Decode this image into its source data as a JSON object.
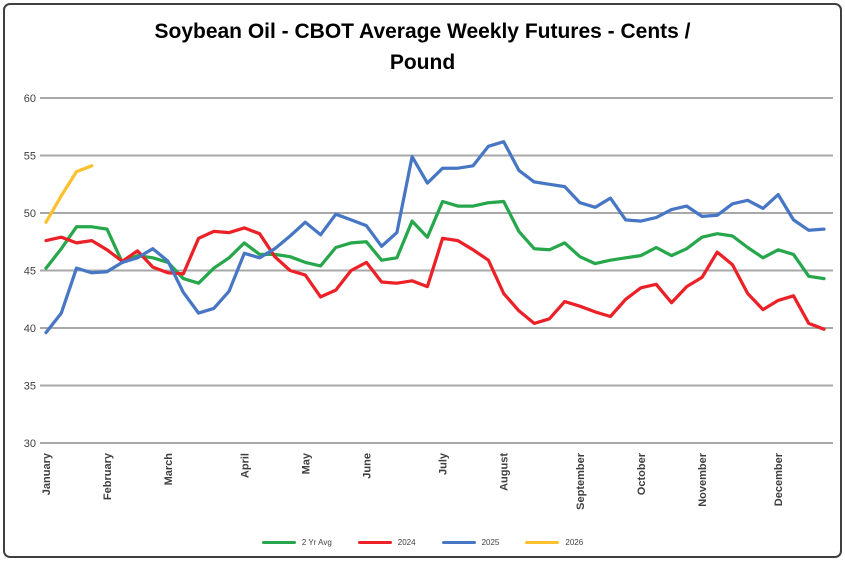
{
  "chart_data": {
    "type": "line",
    "title": "Soybean Oil - CBOT Average Weekly Futures - Cents / Pound",
    "title_lines": [
      "Soybean Oil - CBOT Average Weekly Futures - Cents /",
      "Pound"
    ],
    "ylabel": "",
    "xlabel": "",
    "y_axis": {
      "min": 30,
      "max": 60,
      "step": 5,
      "ticks": [
        60,
        55,
        50,
        45,
        40,
        35,
        30
      ]
    },
    "x_axis": {
      "unit": "weeks",
      "weeks_total": 52,
      "month_labels": [
        "January",
        "February",
        "March",
        "April",
        "May",
        "June",
        "July",
        "August",
        "September",
        "October",
        "November",
        "December"
      ],
      "month_week_index": [
        0,
        4,
        8,
        13,
        17,
        21,
        26,
        30,
        35,
        39,
        43,
        48
      ]
    },
    "grid": true,
    "legend_position": "bottom",
    "series": [
      {
        "name": "2 Yr Avg",
        "color": "#27A74B",
        "values": [
          45.2,
          46.9,
          48.8,
          48.8,
          48.6,
          45.7,
          46.3,
          46.1,
          45.7,
          44.3,
          43.9,
          45.2,
          46.1,
          47.4,
          46.4,
          46.4,
          46.2,
          45.7,
          45.4,
          47.0,
          47.4,
          47.5,
          45.9,
          46.1,
          49.3,
          47.9,
          51.0,
          50.6,
          50.6,
          50.9,
          51.0,
          48.4,
          46.9,
          46.8,
          47.4,
          46.2,
          45.6,
          45.9,
          46.1,
          46.3,
          47.0,
          46.3,
          46.9,
          47.9,
          48.2,
          48.0,
          47.0,
          46.1,
          46.8,
          46.4,
          44.5,
          44.3
        ]
      },
      {
        "name": "2024",
        "color": "#EC2127",
        "values": [
          47.6,
          47.9,
          47.4,
          47.6,
          46.8,
          45.8,
          46.7,
          45.3,
          44.8,
          44.7,
          47.8,
          48.4,
          48.3,
          48.7,
          48.2,
          46.2,
          45.0,
          44.6,
          42.7,
          43.3,
          45.0,
          45.7,
          44.0,
          43.9,
          44.1,
          43.6,
          47.8,
          47.6,
          46.8,
          45.9,
          43.0,
          41.5,
          40.4,
          40.8,
          42.3,
          41.9,
          41.4,
          41.0,
          42.5,
          43.5,
          43.8,
          42.2,
          43.6,
          44.4,
          46.6,
          45.5,
          43.0,
          41.6,
          42.4,
          42.8,
          40.4,
          39.9
        ]
      },
      {
        "name": "2025",
        "color": "#4777C4",
        "values": [
          39.6,
          41.3,
          45.2,
          44.8,
          44.9,
          45.7,
          46.1,
          46.9,
          45.8,
          43.1,
          41.3,
          41.7,
          43.2,
          46.5,
          46.1,
          46.9,
          48.0,
          49.2,
          48.1,
          49.9,
          49.4,
          48.9,
          47.1,
          48.3,
          54.9,
          52.6,
          53.9,
          53.9,
          54.1,
          55.8,
          56.2,
          53.7,
          52.7,
          52.5,
          52.3,
          50.9,
          50.5,
          51.3,
          49.4,
          49.3,
          49.6,
          50.3,
          50.6,
          49.7,
          49.8,
          50.8,
          51.1,
          50.4,
          51.6,
          49.4,
          48.5,
          48.6
        ]
      },
      {
        "name": "2026",
        "color": "#FDC02F",
        "values": [
          49.2,
          51.5,
          53.6,
          54.1
        ]
      }
    ],
    "colors": {
      "gridline": "#A8A8A8",
      "axis_text": "#3f3f3f",
      "border": "#3f3f3f"
    }
  }
}
